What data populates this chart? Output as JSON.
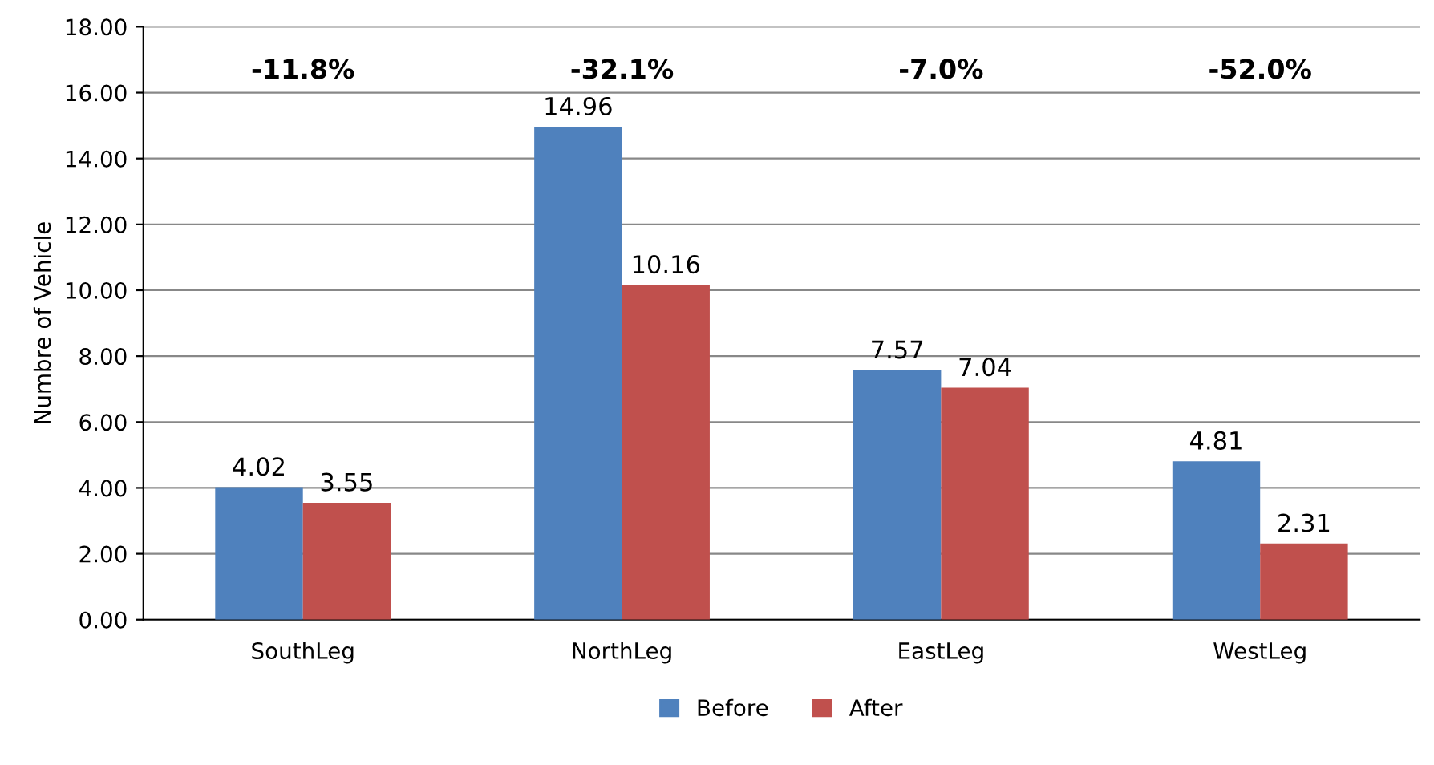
{
  "chart_data": {
    "type": "bar",
    "ylabel": "Numbre of Vehicle",
    "categories": [
      "SouthLeg",
      "NorthLeg",
      "EastLeg",
      "WestLeg"
    ],
    "series": [
      {
        "name": "Before",
        "color": "#4f81bd",
        "values": [
          4.02,
          14.96,
          7.57,
          4.81
        ]
      },
      {
        "name": "After",
        "color": "#c0504d",
        "values": [
          3.55,
          10.16,
          7.04,
          2.31
        ]
      }
    ],
    "ylim": [
      0,
      18
    ],
    "yticks": [
      {
        "value": 0,
        "label": "0.00"
      },
      {
        "value": 2,
        "label": "2.00"
      },
      {
        "value": 4,
        "label": "4.00"
      },
      {
        "value": 6,
        "label": "6.00"
      },
      {
        "value": 8,
        "label": "8.00"
      },
      {
        "value": 10,
        "label": "10.00"
      },
      {
        "value": 12,
        "label": "12.00"
      },
      {
        "value": 14,
        "label": "14.00"
      },
      {
        "value": 16,
        "label": "16.00"
      },
      {
        "value": 18,
        "label": "18.00"
      }
    ],
    "grid": "y",
    "legend": "bottom",
    "data_labels": true,
    "annotations": [
      "-11.8%",
      "-32.1%",
      "-7.0%",
      "-52.0%"
    ]
  }
}
